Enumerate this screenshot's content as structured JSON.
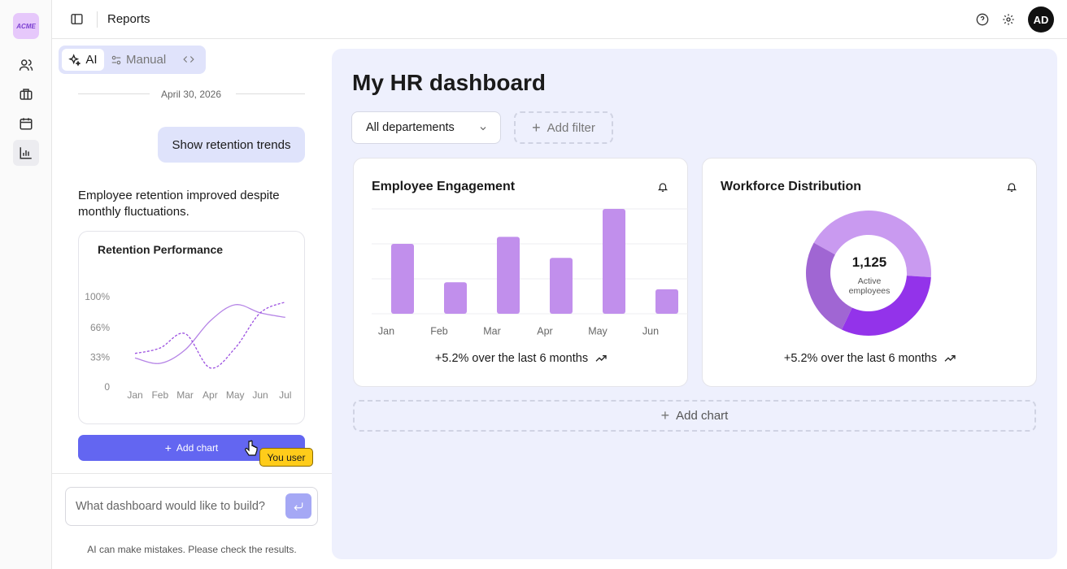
{
  "nav": {
    "logo": "ACME"
  },
  "header": {
    "title": "Reports",
    "avatar": "AD"
  },
  "chat": {
    "tabs": [
      "AI",
      "Manual"
    ],
    "date": "April 30, 2026",
    "user_message": "Show retention trends",
    "ai_message": "Employee retention improved despite monthly fluctuations.",
    "add_chart": "Add chart",
    "cursor_label": "You user",
    "input_placeholder": "What dashboard would like to build?",
    "disclaimer": "AI can make mistakes. Please check the results."
  },
  "dashboard": {
    "title": "My HR dashboard",
    "filter": "All departements",
    "add_filter": "Add filter",
    "add_chart": "Add chart"
  },
  "chart_data": [
    {
      "type": "line",
      "title": "Retention Performance",
      "categories": [
        "Jan",
        "Feb",
        "Mar",
        "Apr",
        "May",
        "Jun",
        "Jul"
      ],
      "series": [
        {
          "color": "#b584e6",
          "values": [
            33,
            27,
            42,
            74,
            92,
            83,
            78
          ]
        },
        {
          "color": "#9b4fe0",
          "dashed": true,
          "values": [
            38,
            44,
            60,
            22,
            44,
            83,
            95
          ]
        }
      ],
      "ylim": [
        0,
        100
      ],
      "yticks": [
        0,
        {
          "value": 33,
          "label": "33%"
        },
        {
          "value": 66,
          "label": "66%"
        },
        {
          "value": 100,
          "label": "100%"
        }
      ]
    },
    {
      "type": "bar",
      "title": "Employee Engagement",
      "categories": [
        "Jan",
        "Feb",
        "Mar",
        "Apr",
        "May",
        "Jun"
      ],
      "values": [
        2.0,
        0.9,
        2.2,
        1.6,
        3.0,
        0.7
      ],
      "color": "#c18fec",
      "ylim": [
        0,
        3
      ],
      "yticks": [
        0,
        1,
        2,
        3
      ],
      "grid": true,
      "footnote": "+5.2% over the last 6 months"
    },
    {
      "type": "donut",
      "title": "Workforce Distribution",
      "values": [
        43,
        31,
        26
      ],
      "colors": [
        "#c99af0",
        "#9333ea",
        "#a066d3"
      ],
      "center_value": "1,125",
      "center_label": "Active employees",
      "footnote": "+5.2% over the last 6 months"
    }
  ]
}
